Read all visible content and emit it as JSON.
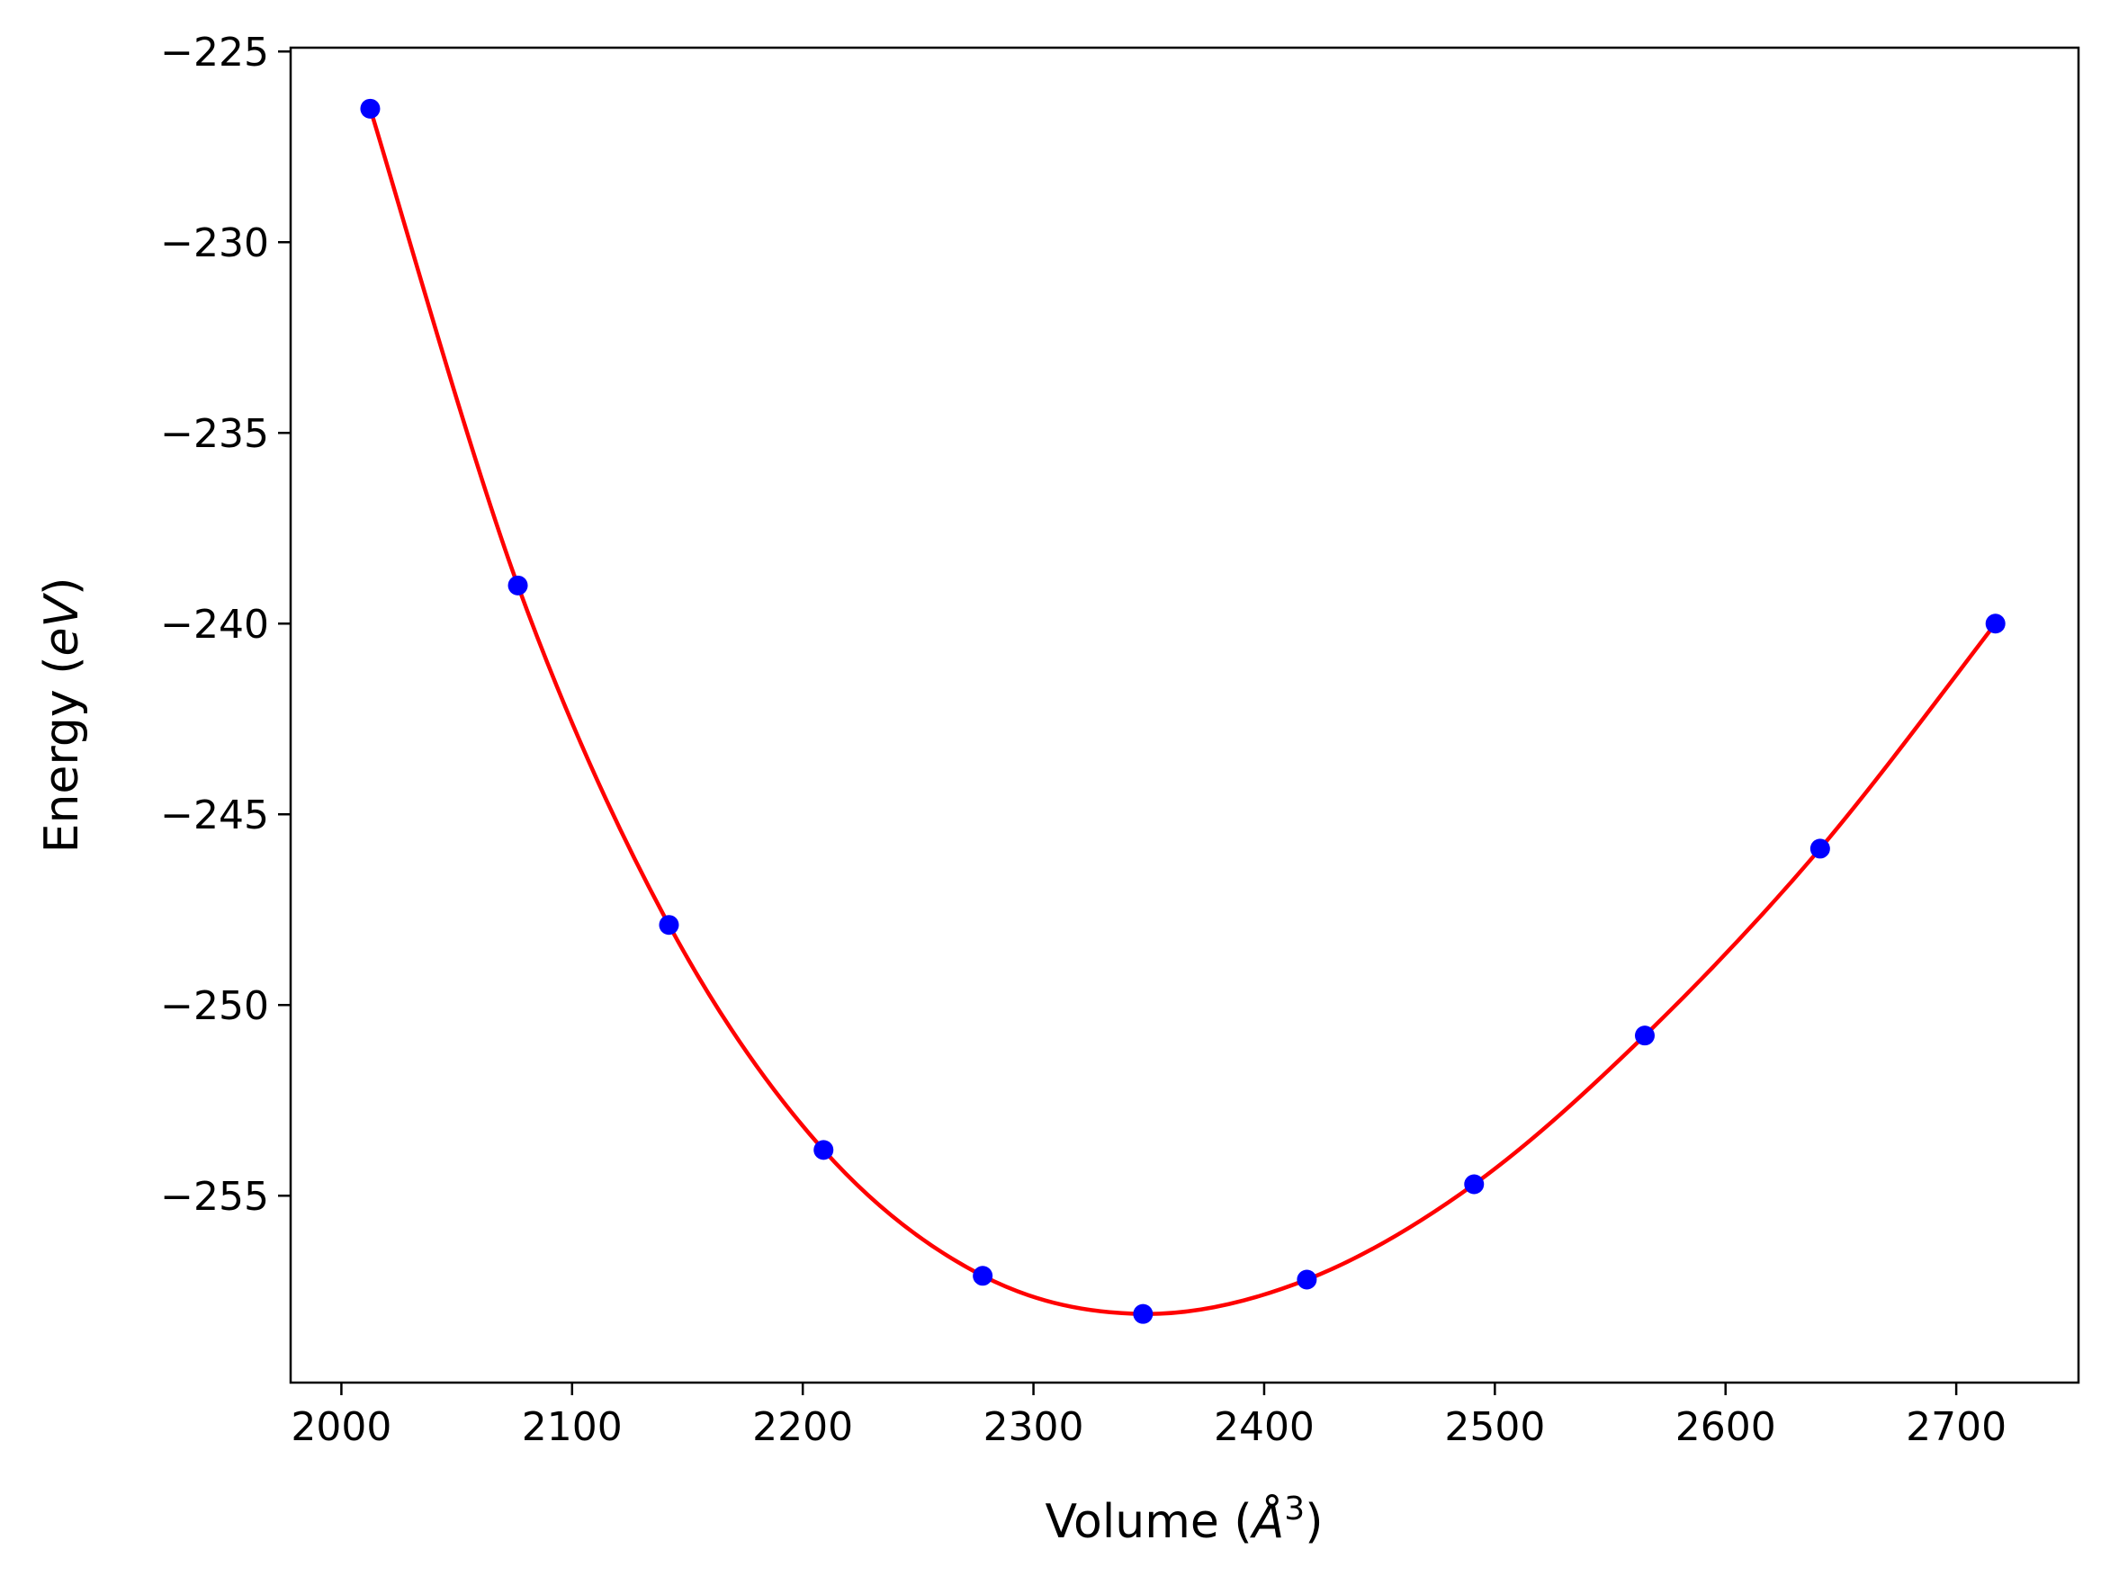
{
  "chart_data": {
    "type": "scatter",
    "title": "",
    "xlabel_parts": {
      "prefix": "Volume (",
      "symbol": "Å",
      "exponent": "3",
      "suffix": ")"
    },
    "ylabel_parts": {
      "prefix": "Energy (",
      "unit": "eV",
      "suffix": ")"
    },
    "xlim": [
      1978,
      2753
    ],
    "ylim": [
      -259.9,
      -224.9
    ],
    "x_ticks": [
      2000,
      2100,
      2200,
      2300,
      2400,
      2500,
      2600,
      2700
    ],
    "x_tick_labels": [
      "2000",
      "2100",
      "2200",
      "2300",
      "2400",
      "2500",
      "2600",
      "2700"
    ],
    "y_ticks": [
      -225,
      -230,
      -235,
      -240,
      -245,
      -250,
      -255
    ],
    "y_tick_labels": [
      "−225",
      "−230",
      "−235",
      "−240",
      "−245",
      "−250",
      "−255"
    ],
    "grid": false,
    "series": [
      {
        "kind": "points",
        "color": "#0000ff",
        "x": [
          2012.5,
          2076.5,
          2142,
          2209,
          2278,
          2347.5,
          2418.5,
          2491,
          2565,
          2641,
          2717
        ],
        "y": [
          -226.5,
          -239.0,
          -247.9,
          -253.8,
          -257.1,
          -258.1,
          -257.2,
          -254.7,
          -250.8,
          -245.9,
          -240.0
        ]
      },
      {
        "kind": "fit-line",
        "color": "#ff0000"
      }
    ]
  }
}
